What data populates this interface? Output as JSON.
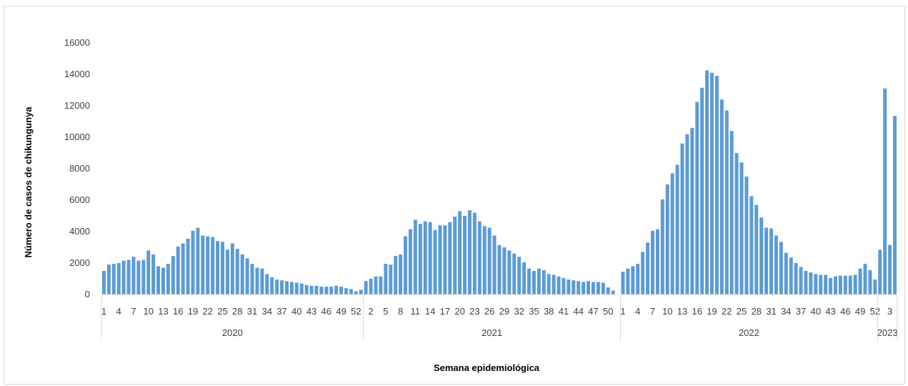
{
  "chart_data": {
    "type": "bar",
    "xlabel": "Semana epidemiológica",
    "ylabel": "Número de casos de chikungunya",
    "ylim": [
      0,
      16000
    ],
    "yticks": [
      0,
      2000,
      4000,
      6000,
      8000,
      10000,
      12000,
      14000,
      16000
    ],
    "bar_color": "#5b9bd5",
    "grid": false,
    "groups": [
      {
        "year": "2020",
        "week_labels": [
          "1",
          "4",
          "7",
          "10",
          "13",
          "16",
          "19",
          "22",
          "25",
          "28",
          "31",
          "34",
          "37",
          "40",
          "43",
          "46",
          "49",
          "52"
        ],
        "weeks": [
          1,
          2,
          3,
          4,
          5,
          6,
          7,
          8,
          9,
          10,
          11,
          12,
          13,
          14,
          15,
          16,
          17,
          18,
          19,
          20,
          21,
          22,
          23,
          24,
          25,
          26,
          27,
          28,
          29,
          30,
          31,
          32,
          33,
          34,
          35,
          36,
          37,
          38,
          39,
          40,
          41,
          42,
          43,
          44,
          45,
          46,
          47,
          48,
          49,
          50,
          51,
          52,
          53
        ],
        "values": [
          1500,
          1900,
          1950,
          2000,
          2150,
          2200,
          2400,
          2150,
          2200,
          2800,
          2550,
          1800,
          1700,
          1950,
          2450,
          3050,
          3250,
          3550,
          4050,
          4250,
          3750,
          3700,
          3650,
          3400,
          3350,
          2850,
          3250,
          2900,
          2550,
          2300,
          1950,
          1700,
          1650,
          1300,
          1100,
          950,
          900,
          850,
          800,
          750,
          700,
          600,
          550,
          550,
          500,
          500,
          500,
          550,
          500,
          400,
          350,
          200,
          300
        ]
      },
      {
        "year": "2021",
        "week_labels": [
          "2",
          "5",
          "8",
          "11",
          "14",
          "17",
          "20",
          "23",
          "26",
          "29",
          "32",
          "35",
          "38",
          "41",
          "44",
          "47",
          "50"
        ],
        "weeks": [
          1,
          2,
          3,
          4,
          5,
          6,
          7,
          8,
          9,
          10,
          11,
          12,
          13,
          14,
          15,
          16,
          17,
          18,
          19,
          20,
          21,
          22,
          23,
          24,
          25,
          26,
          27,
          28,
          29,
          30,
          31,
          32,
          33,
          34,
          35,
          36,
          37,
          38,
          39,
          40,
          41,
          42,
          43,
          44,
          45,
          46,
          47,
          48,
          49,
          50,
          51,
          52
        ],
        "values": [
          850,
          1000,
          1150,
          1150,
          1950,
          1900,
          2450,
          2550,
          3700,
          4150,
          4750,
          4500,
          4650,
          4600,
          4100,
          4400,
          4400,
          4600,
          4950,
          5300,
          5000,
          5350,
          5200,
          4650,
          4350,
          4250,
          3750,
          3150,
          3000,
          2800,
          2600,
          2400,
          2050,
          1650,
          1500,
          1650,
          1550,
          1300,
          1250,
          1150,
          1050,
          950,
          900,
          850,
          800,
          850,
          800,
          800,
          750,
          450,
          250,
          0
        ]
      },
      {
        "year": "2022",
        "week_labels": [
          "1",
          "4",
          "7",
          "10",
          "13",
          "16",
          "19",
          "22",
          "25",
          "28",
          "31",
          "34",
          "37",
          "40",
          "43",
          "46",
          "49",
          "52"
        ],
        "weeks": [
          1,
          2,
          3,
          4,
          5,
          6,
          7,
          8,
          9,
          10,
          11,
          12,
          13,
          14,
          15,
          16,
          17,
          18,
          19,
          20,
          21,
          22,
          23,
          24,
          25,
          26,
          27,
          28,
          29,
          30,
          31,
          32,
          33,
          34,
          35,
          36,
          37,
          38,
          39,
          40,
          41,
          42,
          43,
          44,
          45,
          46,
          47,
          48,
          49,
          50,
          51,
          52
        ],
        "values": [
          1450,
          1650,
          1800,
          1950,
          2700,
          3300,
          4050,
          4150,
          6050,
          7000,
          7700,
          8250,
          9600,
          10200,
          10600,
          12250,
          13150,
          14250,
          14100,
          13900,
          12400,
          11700,
          10400,
          9000,
          8400,
          7500,
          6250,
          5700,
          4900,
          4250,
          4200,
          3750,
          3350,
          2650,
          2350,
          2000,
          1750,
          1500,
          1400,
          1300,
          1250,
          1250,
          1050,
          1150,
          1200,
          1200,
          1200,
          1250,
          1650,
          1950,
          1550,
          950
        ]
      },
      {
        "year": "2023",
        "week_labels": [
          "3"
        ],
        "weeks": [
          1,
          2,
          3,
          4
        ],
        "values": [
          2850,
          13100,
          3150,
          11350
        ]
      }
    ]
  }
}
